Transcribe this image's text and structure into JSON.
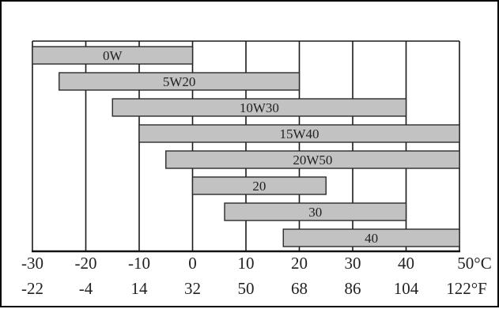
{
  "chart_data": {
    "type": "bar",
    "orientation": "horizontal-range",
    "title": "",
    "xlabel": "",
    "ylabel": "",
    "x_unit_primary": "°C",
    "x_unit_secondary": "°F",
    "xlim": [
      -30,
      50
    ],
    "grid": true,
    "legend": "none",
    "colors": {
      "bar_fill": "#c2c2c2",
      "bar_stroke": "#2b2b2b",
      "grid": "#1a1a1a",
      "axis": "#111111",
      "frame": "#000000"
    },
    "series": [
      {
        "name": "0W",
        "range": [
          -30,
          0
        ]
      },
      {
        "name": "5W20",
        "range": [
          -25,
          20
        ]
      },
      {
        "name": "10W30",
        "range": [
          -15,
          40
        ]
      },
      {
        "name": "15W40",
        "range": [
          -10,
          50
        ]
      },
      {
        "name": "20W50",
        "range": [
          -5,
          50
        ]
      },
      {
        "name": "20",
        "range": [
          0,
          25
        ]
      },
      {
        "name": "30",
        "range": [
          6,
          40
        ]
      },
      {
        "name": "40",
        "range": [
          17,
          50
        ]
      }
    ],
    "x_ticks_celsius": [
      "-30",
      "-20",
      "-10",
      "0",
      "10",
      "20",
      "30",
      "40",
      "50°C"
    ],
    "x_ticks_fahrenheit": [
      "-22",
      "-4",
      "14",
      "32",
      "50",
      "68",
      "86",
      "104",
      "122°F"
    ]
  }
}
